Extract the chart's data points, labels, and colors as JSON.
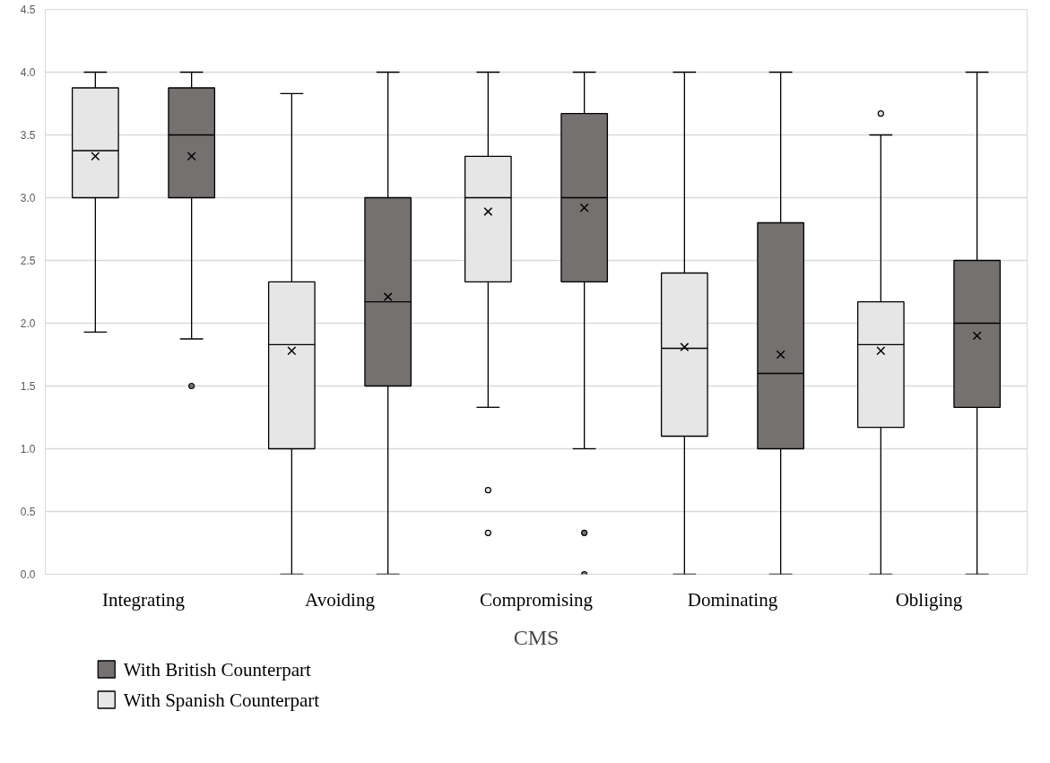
{
  "chart_data": {
    "type": "box",
    "xlabel": "CMS",
    "categories": [
      "Integrating",
      "Avoiding",
      "Compromising",
      "Dominating",
      "Obliging"
    ],
    "series": [
      {
        "name": "With Spanish Counterpart",
        "color": "#e7e6e6",
        "boxes": [
          {
            "low": 1.93,
            "q1": 3.0,
            "median": 3.375,
            "q3": 3.875,
            "high": 4.0,
            "mean": 3.33
          },
          {
            "low": 0.0,
            "q1": 1.0,
            "median": 1.83,
            "q3": 2.33,
            "high": 3.83,
            "mean": 1.78
          },
          {
            "low": 1.33,
            "q1": 2.33,
            "median": 3.0,
            "q3": 3.33,
            "high": 4.0,
            "mean": 2.89,
            "outliers": [
              0.67,
              0.33
            ]
          },
          {
            "low": 0.0,
            "q1": 1.1,
            "median": 1.8,
            "q3": 2.4,
            "high": 4.0,
            "mean": 1.81
          },
          {
            "low": 0.0,
            "q1": 1.17,
            "median": 1.83,
            "q3": 2.17,
            "high": 3.5,
            "mean": 1.78,
            "outliers": [
              3.67
            ]
          }
        ]
      },
      {
        "name": "With British Counterpart",
        "color": "#767171",
        "boxes": [
          {
            "low": 1.875,
            "q1": 3.0,
            "median": 3.5,
            "q3": 3.875,
            "high": 4.0,
            "mean": 3.33,
            "outliers": [
              1.5
            ]
          },
          {
            "low": 0.0,
            "q1": 1.5,
            "median": 2.17,
            "q3": 3.0,
            "high": 4.0,
            "mean": 2.21
          },
          {
            "low": 1.0,
            "q1": 2.33,
            "median": 3.0,
            "q3": 3.67,
            "high": 4.0,
            "mean": 2.92,
            "outliers": [
              0.33,
              0.0
            ]
          },
          {
            "low": 0.0,
            "q1": 1.0,
            "median": 1.6,
            "q3": 2.8,
            "high": 4.0,
            "mean": 1.75
          },
          {
            "low": 0.0,
            "q1": 1.33,
            "median": 2.0,
            "q3": 2.5,
            "high": 4.0,
            "mean": 1.9
          }
        ]
      }
    ],
    "ylim": [
      0,
      4.5
    ],
    "yticks": [
      {
        "value": 0,
        "label": "0.0"
      },
      {
        "value": 0.5,
        "label": "0.5"
      },
      {
        "value": 1,
        "label": "1.0"
      },
      {
        "value": 1.5,
        "label": "1.5"
      },
      {
        "value": 2,
        "label": "2.0"
      },
      {
        "value": 2.5,
        "label": "2.5"
      },
      {
        "value": 3,
        "label": "3.0"
      },
      {
        "value": 3.5,
        "label": "3.5"
      },
      {
        "value": 4,
        "label": "4.0"
      },
      {
        "value": 4.5,
        "label": "4.5"
      }
    ],
    "grid": "y",
    "legend": "bottom"
  }
}
